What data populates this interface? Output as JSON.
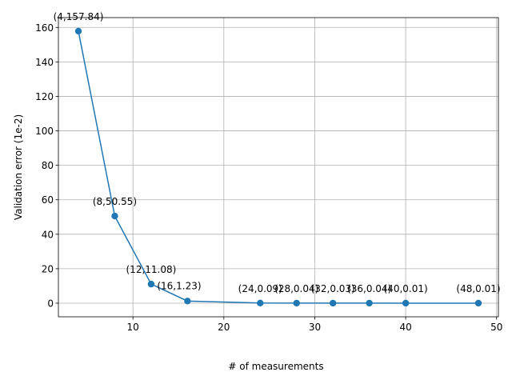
{
  "chart_data": {
    "type": "line",
    "title": "",
    "xlabel": "# of measurements",
    "ylabel": "Validation error (1e-2)",
    "xlim": [
      1.8,
      50.2
    ],
    "ylim": [
      -7.9,
      165.7
    ],
    "xticks": [
      10,
      20,
      30,
      40,
      50
    ],
    "yticks": [
      0,
      20,
      40,
      60,
      80,
      100,
      120,
      140,
      160
    ],
    "xtick_labels": [
      "10",
      "20",
      "30",
      "40",
      "50"
    ],
    "ytick_labels": [
      "0",
      "20",
      "40",
      "60",
      "80",
      "100",
      "120",
      "140",
      "160"
    ],
    "grid": true,
    "series": [
      {
        "color": "#1f77b4",
        "marker": "circle",
        "x": [
          4,
          8,
          12,
          16,
          24,
          28,
          32,
          36,
          40,
          48
        ],
        "values": [
          157.84,
          50.55,
          11.08,
          1.23,
          0.09,
          0.04,
          0.03,
          0.04,
          0.01,
          0.01
        ]
      }
    ],
    "annotations": [
      "(4,157.84)",
      "(8,50.55)",
      "(12,11.08)",
      "(16,1.23)",
      "(24,0.09)",
      "(28,0.04)",
      "(32,0.03)",
      "(36,0.04)",
      "(40,0.01)",
      "(48,0.01)"
    ]
  }
}
